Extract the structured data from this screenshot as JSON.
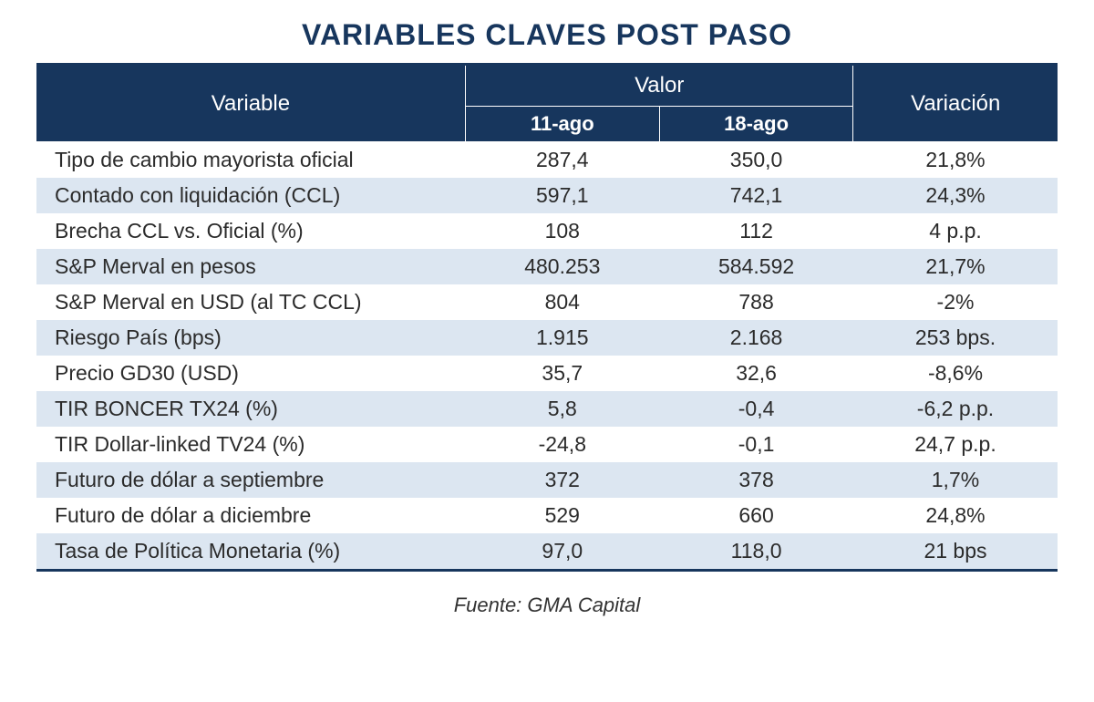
{
  "title": "VARIABLES CLAVES POST PASO",
  "source": "Fuente: GMA Capital",
  "table": {
    "type": "table",
    "header_bg_color": "#17365d",
    "header_text_color": "#ffffff",
    "row_stripe_colors": [
      "#ffffff",
      "#dce6f1"
    ],
    "border_color": "#17365d",
    "title_color": "#17365d",
    "title_fontsize": 32,
    "cell_fontsize": 23,
    "header_fontsize": 24,
    "columns": {
      "variable_header": "Variable",
      "valor_header": "Valor",
      "date1_header": "11-ago",
      "date2_header": "18-ago",
      "variacion_header": "Variación"
    },
    "column_widths": [
      "42%",
      "19%",
      "19%",
      "20%"
    ],
    "rows": [
      {
        "variable": "Tipo de cambio mayorista oficial",
        "v1": "287,4",
        "v2": "350,0",
        "var": "21,8%"
      },
      {
        "variable": "Contado con liquidación (CCL)",
        "v1": "597,1",
        "v2": "742,1",
        "var": "24,3%"
      },
      {
        "variable": "Brecha CCL vs. Oficial (%)",
        "v1": "108",
        "v2": "112",
        "var": "4 p.p."
      },
      {
        "variable": "S&P Merval en pesos",
        "v1": "480.253",
        "v2": "584.592",
        "var": "21,7%"
      },
      {
        "variable": "S&P Merval en USD (al TC CCL)",
        "v1": "804",
        "v2": "788",
        "var": "-2%"
      },
      {
        "variable": "Riesgo País (bps)",
        "v1": "1.915",
        "v2": "2.168",
        "var": "253 bps."
      },
      {
        "variable": "Precio GD30 (USD)",
        "v1": "35,7",
        "v2": "32,6",
        "var": "-8,6%"
      },
      {
        "variable": "TIR BONCER TX24 (%)",
        "v1": "5,8",
        "v2": "-0,4",
        "var": "-6,2 p.p."
      },
      {
        "variable": "TIR Dollar-linked TV24 (%)",
        "v1": "-24,8",
        "v2": "-0,1",
        "var": "24,7 p.p."
      },
      {
        "variable": "Futuro de dólar a septiembre",
        "v1": "372",
        "v2": "378",
        "var": "1,7%"
      },
      {
        "variable": "Futuro de dólar a diciembre",
        "v1": "529",
        "v2": "660",
        "var": "24,8%"
      },
      {
        "variable": "Tasa de Política Monetaria (%)",
        "v1": "97,0",
        "v2": "118,0",
        "var": "21 bps"
      }
    ]
  }
}
